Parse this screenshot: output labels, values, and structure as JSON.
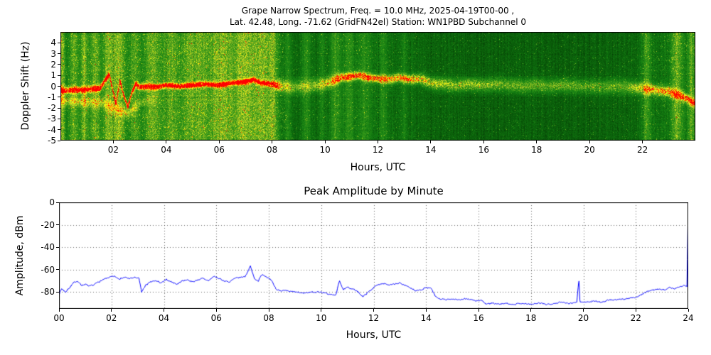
{
  "figure": {
    "background": "#ffffff"
  },
  "chart_data": [
    {
      "type": "heatmap",
      "title": "Grape Narrow Spectrum, Freq. = 10.0 MHz, 2025-04-19T00-00 ,",
      "subtitle": "Lat.  42.48, Long. -71.62 (GridFN42el) Station: WN1PBD Subchannel 0",
      "xlabel": "Hours, UTC",
      "ylabel": "Doppler Shift (Hz)",
      "xlim": [
        0,
        24
      ],
      "ylim": [
        -5,
        5
      ],
      "xticks": [
        2,
        4,
        6,
        8,
        10,
        12,
        14,
        16,
        18,
        20,
        22
      ],
      "xticklabels": [
        "02",
        "04",
        "06",
        "08",
        "10",
        "12",
        "14",
        "16",
        "18",
        "20",
        "22"
      ],
      "yticks": [
        4,
        3,
        2,
        1,
        0,
        -1,
        -2,
        -3,
        -4,
        -5
      ],
      "grid": true,
      "legend": "none",
      "colormap": [
        [
          0.0,
          "#002800"
        ],
        [
          0.18,
          "#0a5c0a"
        ],
        [
          0.3,
          "#117a11"
        ],
        [
          0.45,
          "#2e9418"
        ],
        [
          0.6,
          "#7fb722"
        ],
        [
          0.72,
          "#d8e02a"
        ],
        [
          0.82,
          "#ffff00"
        ],
        [
          0.91,
          "#ff9000"
        ],
        [
          1.0,
          "#ff0000"
        ]
      ],
      "trace": [
        [
          0,
          -0.4,
          0.85
        ],
        [
          0.5,
          -0.35,
          0.9
        ],
        [
          1.0,
          -0.3,
          0.9
        ],
        [
          1.5,
          -0.2,
          0.9
        ],
        [
          1.7,
          0.6,
          1.0
        ],
        [
          1.85,
          1.1,
          1.0
        ],
        [
          2.0,
          -0.6,
          1.0
        ],
        [
          2.1,
          -1.6,
          1.0
        ],
        [
          2.25,
          0.5,
          1.0
        ],
        [
          2.4,
          -0.9,
          1.0
        ],
        [
          2.55,
          -1.9,
          1.0
        ],
        [
          2.7,
          -0.6,
          0.95
        ],
        [
          2.85,
          0.2,
          0.9
        ],
        [
          3.0,
          -0.1,
          0.9
        ],
        [
          3.3,
          0.0,
          0.9
        ],
        [
          3.6,
          -0.1,
          0.95
        ],
        [
          4.0,
          0.1,
          1.0
        ],
        [
          4.5,
          0.0,
          1.0
        ],
        [
          5.0,
          0.1,
          1.0
        ],
        [
          5.5,
          0.2,
          1.0
        ],
        [
          6.0,
          0.1,
          1.0
        ],
        [
          6.5,
          0.3,
          1.0
        ],
        [
          7.0,
          0.4,
          1.0
        ],
        [
          7.3,
          0.6,
          1.0
        ],
        [
          7.6,
          0.3,
          1.0
        ],
        [
          8.0,
          0.2,
          1.0
        ],
        [
          8.15,
          0.1,
          0.8
        ],
        [
          8.4,
          0.0,
          0.4
        ],
        [
          8.8,
          -0.1,
          0.35
        ],
        [
          9.2,
          0.0,
          0.35
        ],
        [
          9.6,
          0.1,
          0.35
        ],
        [
          10.0,
          0.2,
          0.5
        ],
        [
          10.3,
          0.5,
          0.6
        ],
        [
          10.6,
          0.8,
          0.75
        ],
        [
          11.0,
          0.9,
          0.8
        ],
        [
          11.3,
          1.0,
          0.8
        ],
        [
          11.6,
          0.8,
          0.75
        ],
        [
          12.0,
          0.7,
          0.8
        ],
        [
          12.4,
          0.6,
          0.7
        ],
        [
          12.8,
          0.8,
          0.75
        ],
        [
          13.2,
          0.6,
          0.7
        ],
        [
          13.6,
          0.7,
          0.6
        ],
        [
          14.0,
          0.3,
          0.5
        ],
        [
          14.5,
          0.2,
          0.45
        ],
        [
          15.0,
          0.1,
          0.4
        ],
        [
          15.5,
          0.2,
          0.45
        ],
        [
          16.0,
          0.1,
          0.4
        ],
        [
          16.5,
          0.2,
          0.38
        ],
        [
          17.0,
          0.1,
          0.35
        ],
        [
          17.5,
          0.0,
          0.38
        ],
        [
          18.0,
          0.1,
          0.35
        ],
        [
          18.5,
          0.0,
          0.33
        ],
        [
          19.0,
          0.1,
          0.38
        ],
        [
          19.5,
          0.0,
          0.33
        ],
        [
          20.0,
          0.0,
          0.33
        ],
        [
          20.5,
          -0.1,
          0.33
        ],
        [
          21.0,
          0.0,
          0.33
        ],
        [
          21.5,
          -0.1,
          0.38
        ],
        [
          22.0,
          -0.2,
          0.5
        ],
        [
          22.3,
          -0.3,
          0.6
        ],
        [
          22.6,
          -0.4,
          0.6
        ],
        [
          23.0,
          -0.5,
          0.6
        ],
        [
          23.4,
          -0.8,
          0.7
        ],
        [
          23.7,
          -1.2,
          0.7
        ],
        [
          24.0,
          -1.6,
          0.7
        ]
      ],
      "trace2": [
        [
          0,
          -1.3,
          0.35
        ],
        [
          0.8,
          -1.4,
          0.3
        ],
        [
          1.6,
          -1.5,
          0.3
        ],
        [
          2.2,
          -2.2,
          0.35
        ],
        [
          2.6,
          -2.5,
          0.3
        ],
        [
          3.0,
          -1.5,
          0.2
        ],
        [
          3.5,
          -1.2,
          0.1
        ],
        [
          4.0,
          -1.0,
          0.0
        ],
        [
          24.0,
          -1.0,
          0.0
        ]
      ],
      "streaks": [
        [
          0.08,
          0.06,
          0.5
        ],
        [
          0.5,
          0.12,
          0.35
        ],
        [
          0.9,
          0.08,
          0.5
        ],
        [
          1.3,
          0.15,
          0.4
        ],
        [
          1.8,
          0.12,
          0.45
        ],
        [
          2.2,
          0.18,
          0.5
        ],
        [
          2.8,
          0.12,
          0.35
        ],
        [
          3.5,
          0.25,
          0.4
        ],
        [
          4.2,
          0.2,
          0.38
        ],
        [
          4.8,
          0.18,
          0.33
        ],
        [
          5.3,
          0.25,
          0.4
        ],
        [
          5.9,
          0.18,
          0.35
        ],
        [
          6.3,
          0.2,
          0.4
        ],
        [
          6.8,
          0.18,
          0.35
        ],
        [
          7.2,
          0.25,
          0.42
        ],
        [
          7.7,
          0.18,
          0.4
        ],
        [
          8.05,
          0.12,
          0.45
        ],
        [
          8.6,
          0.08,
          0.25
        ],
        [
          9.3,
          0.12,
          0.3
        ],
        [
          9.9,
          0.08,
          0.25
        ],
        [
          10.4,
          0.15,
          0.35
        ],
        [
          10.9,
          0.12,
          0.3
        ],
        [
          11.5,
          0.15,
          0.28
        ],
        [
          12.2,
          0.12,
          0.22
        ],
        [
          13.0,
          0.08,
          0.18
        ],
        [
          22.15,
          0.12,
          0.4
        ],
        [
          23.3,
          0.15,
          0.5
        ],
        [
          23.85,
          0.1,
          0.45
        ]
      ],
      "bg_profile": [
        [
          0,
          0.3
        ],
        [
          2,
          0.32
        ],
        [
          4,
          0.31
        ],
        [
          6,
          0.32
        ],
        [
          8,
          0.31
        ],
        [
          8.6,
          0.24
        ],
        [
          9,
          0.22
        ],
        [
          10,
          0.23
        ],
        [
          11,
          0.26
        ],
        [
          12,
          0.25
        ],
        [
          13,
          0.23
        ],
        [
          14,
          0.21
        ],
        [
          15,
          0.2
        ],
        [
          16,
          0.19
        ],
        [
          17,
          0.19
        ],
        [
          18,
          0.19
        ],
        [
          19,
          0.19
        ],
        [
          20,
          0.19
        ],
        [
          21,
          0.2
        ],
        [
          21.8,
          0.21
        ],
        [
          22.5,
          0.26
        ],
        [
          23.2,
          0.27
        ],
        [
          24,
          0.26
        ]
      ]
    },
    {
      "type": "line",
      "title": "Peak Amplitude by Minute",
      "xlabel": "Hours, UTC",
      "ylabel": "Amplitude, dBm",
      "xlim": [
        0,
        24
      ],
      "ylim": [
        -95,
        0
      ],
      "xticks": [
        0,
        2,
        4,
        6,
        8,
        10,
        12,
        14,
        16,
        18,
        20,
        22,
        24
      ],
      "xticklabels": [
        "00",
        "02",
        "04",
        "06",
        "08",
        "10",
        "12",
        "14",
        "16",
        "18",
        "20",
        "22",
        "24"
      ],
      "yticks": [
        0,
        -20,
        -40,
        -60,
        -80
      ],
      "grid": true,
      "legend": "none",
      "line_color": "#0000ff",
      "series": [
        {
          "name": "Peak amplitude (dBm)",
          "x": [
            0.0,
            0.1,
            0.25,
            0.4,
            0.55,
            0.7,
            0.85,
            1.0,
            1.15,
            1.3,
            1.5,
            1.7,
            1.9,
            2.1,
            2.3,
            2.5,
            2.7,
            2.9,
            3.05,
            3.15,
            3.3,
            3.5,
            3.7,
            3.9,
            4.1,
            4.3,
            4.5,
            4.7,
            4.9,
            5.1,
            5.3,
            5.5,
            5.7,
            5.9,
            6.1,
            6.3,
            6.5,
            6.7,
            6.9,
            7.1,
            7.3,
            7.45,
            7.6,
            7.75,
            7.9,
            8.1,
            8.3,
            8.6,
            9.0,
            9.3,
            9.6,
            10.0,
            10.3,
            10.55,
            10.7,
            10.85,
            11.0,
            11.2,
            11.4,
            11.6,
            11.8,
            12.0,
            12.2,
            12.4,
            12.6,
            12.8,
            13.0,
            13.2,
            13.4,
            13.6,
            13.8,
            14.0,
            14.2,
            14.35,
            14.5,
            14.75,
            15.0,
            15.3,
            15.6,
            15.9,
            16.1,
            16.3,
            16.5,
            16.8,
            17.0,
            17.3,
            17.6,
            18.0,
            18.3,
            18.6,
            18.9,
            19.2,
            19.5,
            19.75,
            19.83,
            19.87,
            19.95,
            20.1,
            20.4,
            20.7,
            21.0,
            21.3,
            21.6,
            21.9,
            22.1,
            22.3,
            22.5,
            22.7,
            22.9,
            23.1,
            23.3,
            23.5,
            23.7,
            23.85,
            23.95,
            24.0
          ],
          "y": [
            -82,
            -77,
            -80,
            -76,
            -72,
            -70,
            -74,
            -73,
            -75,
            -74,
            -71,
            -69,
            -67,
            -66,
            -68,
            -67,
            -68,
            -67,
            -68,
            -80,
            -74,
            -71,
            -70,
            -72,
            -69,
            -71,
            -73,
            -70,
            -69,
            -71,
            -69,
            -68,
            -70,
            -66,
            -68,
            -70,
            -71,
            -68,
            -67,
            -66,
            -57,
            -68,
            -70,
            -64,
            -66,
            -70,
            -78,
            -79,
            -80,
            -81,
            -80,
            -80,
            -82,
            -83,
            -70,
            -78,
            -76,
            -77,
            -80,
            -84,
            -80,
            -76,
            -73,
            -72,
            -74,
            -73,
            -72,
            -74,
            -76,
            -79,
            -78,
            -76,
            -77,
            -84,
            -86,
            -87,
            -86,
            -87,
            -86,
            -88,
            -87,
            -91,
            -90,
            -91,
            -90,
            -91,
            -90,
            -91,
            -90,
            -91,
            -90,
            -89,
            -90,
            -89,
            -68,
            -89,
            -89,
            -89,
            -88,
            -89,
            -87,
            -87,
            -86,
            -85,
            -84,
            -81,
            -79,
            -78,
            -77,
            -78,
            -76,
            -77,
            -75,
            -74,
            -75,
            -2
          ]
        }
      ]
    }
  ]
}
